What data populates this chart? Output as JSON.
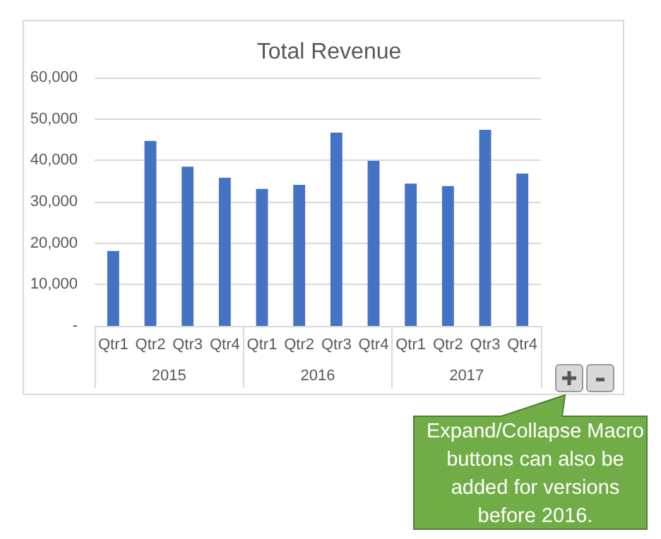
{
  "chart_data": {
    "type": "bar",
    "title": "Total Revenue",
    "categories": [
      "Qtr1",
      "Qtr2",
      "Qtr3",
      "Qtr4",
      "Qtr1",
      "Qtr2",
      "Qtr3",
      "Qtr4",
      "Qtr1",
      "Qtr2",
      "Qtr3",
      "Qtr4"
    ],
    "values": [
      18100,
      44700,
      38500,
      35800,
      33100,
      34100,
      46700,
      39900,
      34400,
      33800,
      47400,
      36800
    ],
    "color": "#4472c4",
    "ylim": [
      0,
      60000
    ],
    "yticks": [
      {
        "value": 0,
        "label": "-"
      },
      {
        "value": 10000,
        "label": "10,000"
      },
      {
        "value": 20000,
        "label": "20,000"
      },
      {
        "value": 30000,
        "label": "30,000"
      },
      {
        "value": 40000,
        "label": "40,000"
      },
      {
        "value": 50000,
        "label": "50,000"
      },
      {
        "value": 60000,
        "label": "60,000"
      }
    ],
    "grid": "y",
    "annotations": [
      "2015",
      "2016",
      "2017",
      "Expand/Collapse Macro buttons can also be added for versions before 2016."
    ]
  }
}
